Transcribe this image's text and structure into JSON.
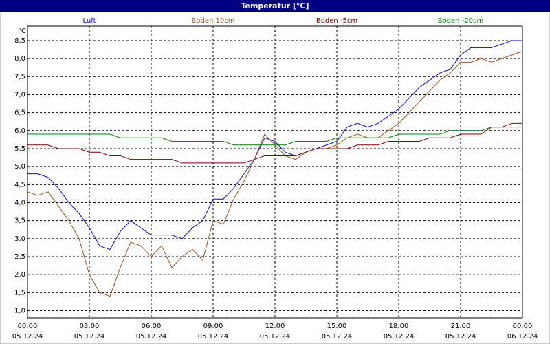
{
  "chart_data": {
    "type": "line",
    "title": "Temperatur [°C]",
    "y_label": "°C",
    "x": [
      0,
      0.5,
      1,
      1.5,
      2,
      2.5,
      3,
      3.5,
      4,
      4.5,
      5,
      5.5,
      6,
      6.5,
      7,
      7.5,
      8,
      8.5,
      9,
      9.5,
      10,
      10.5,
      11,
      11.5,
      12,
      12.5,
      13,
      13.5,
      14,
      14.5,
      15,
      15.5,
      16,
      16.5,
      17,
      17.5,
      18,
      18.5,
      19,
      19.5,
      20,
      20.5,
      21,
      21.5,
      22,
      22.5,
      23,
      23.5,
      24
    ],
    "series": [
      {
        "name": "Luft",
        "color": "#0000e0",
        "values": [
          4.8,
          4.8,
          4.7,
          4.4,
          4.0,
          3.7,
          3.3,
          2.8,
          2.7,
          3.2,
          3.5,
          3.3,
          3.1,
          3.1,
          3.1,
          3.0,
          3.3,
          3.5,
          4.1,
          4.1,
          4.4,
          4.8,
          5.2,
          5.8,
          5.7,
          5.4,
          5.3,
          5.4,
          5.5,
          5.6,
          5.7,
          6.1,
          6.2,
          6.1,
          6.2,
          6.4,
          6.6,
          6.9,
          7.2,
          7.4,
          7.6,
          7.7,
          8.1,
          8.3,
          8.3,
          8.3,
          8.4,
          8.5,
          8.5
        ]
      },
      {
        "name": "Boden 10cm",
        "color": "#a05020",
        "values": [
          4.3,
          4.2,
          4.3,
          3.9,
          3.5,
          3.0,
          2.0,
          1.5,
          1.4,
          2.2,
          2.9,
          2.8,
          2.5,
          2.8,
          2.2,
          2.5,
          2.7,
          2.4,
          3.5,
          3.4,
          4.1,
          4.6,
          5.2,
          5.9,
          5.6,
          5.3,
          5.2,
          5.4,
          5.5,
          5.5,
          5.6,
          5.8,
          5.9,
          5.8,
          5.8,
          6.0,
          6.2,
          6.5,
          6.8,
          7.1,
          7.4,
          7.6,
          7.9,
          7.9,
          8.0,
          7.9,
          8.0,
          8.1,
          8.2
        ]
      },
      {
        "name": "Boden -5cm",
        "color": "#800000",
        "values": [
          5.6,
          5.6,
          5.6,
          5.5,
          5.5,
          5.5,
          5.4,
          5.4,
          5.3,
          5.3,
          5.2,
          5.2,
          5.2,
          5.2,
          5.2,
          5.1,
          5.1,
          5.1,
          5.1,
          5.1,
          5.1,
          5.1,
          5.2,
          5.3,
          5.3,
          5.3,
          5.3,
          5.4,
          5.5,
          5.5,
          5.5,
          5.5,
          5.6,
          5.6,
          5.6,
          5.7,
          5.7,
          5.7,
          5.7,
          5.8,
          5.8,
          5.8,
          5.9,
          5.9,
          5.9,
          6.1,
          6.1,
          6.2,
          6.2
        ]
      },
      {
        "name": "Boden -20cm",
        "color": "#008000",
        "values": [
          5.9,
          5.9,
          5.9,
          5.9,
          5.9,
          5.9,
          5.9,
          5.9,
          5.9,
          5.8,
          5.8,
          5.8,
          5.8,
          5.8,
          5.7,
          5.7,
          5.7,
          5.7,
          5.7,
          5.7,
          5.6,
          5.6,
          5.6,
          5.6,
          5.6,
          5.6,
          5.7,
          5.7,
          5.7,
          5.7,
          5.8,
          5.8,
          5.8,
          5.8,
          5.8,
          5.8,
          5.9,
          5.9,
          5.9,
          5.9,
          5.9,
          6.0,
          6.0,
          6.0,
          6.0,
          6.1,
          6.1,
          6.1,
          6.1
        ]
      }
    ],
    "xlim": [
      0,
      24
    ],
    "xticks": [
      {
        "value": 0,
        "label": "00:00"
      },
      {
        "value": 3,
        "label": "03:00"
      },
      {
        "value": 6,
        "label": "06:00"
      },
      {
        "value": 9,
        "label": "09:00"
      },
      {
        "value": 12,
        "label": "12:00"
      },
      {
        "value": 15,
        "label": "15:00"
      },
      {
        "value": 18,
        "label": "18:00"
      },
      {
        "value": 21,
        "label": "21:00"
      },
      {
        "value": 24,
        "label": "00:00"
      }
    ],
    "xtick_dates": [
      "05.12.24",
      "05.12.24",
      "05.12.24",
      "05.12.24",
      "05.12.24",
      "05.12.24",
      "05.12.24",
      "05.12.24",
      "06.12.24"
    ],
    "ylim": [
      0.8,
      8.9
    ],
    "yticks": [
      {
        "value": 1.0,
        "label": "1,0"
      },
      {
        "value": 1.5,
        "label": "1,5"
      },
      {
        "value": 2.0,
        "label": "2,0"
      },
      {
        "value": 2.5,
        "label": "2,5"
      },
      {
        "value": 3.0,
        "label": "3,0"
      },
      {
        "value": 3.5,
        "label": "3,5"
      },
      {
        "value": 4.0,
        "label": "4,0"
      },
      {
        "value": 4.5,
        "label": "4,5"
      },
      {
        "value": 5.0,
        "label": "5,0"
      },
      {
        "value": 5.5,
        "label": "5,5"
      },
      {
        "value": 6.0,
        "label": "6,0"
      },
      {
        "value": 6.5,
        "label": "6,5"
      },
      {
        "value": 7.0,
        "label": "7,0"
      },
      {
        "value": 7.5,
        "label": "7,5"
      },
      {
        "value": 8.0,
        "label": "8,0"
      },
      {
        "value": 8.5,
        "label": "8,5"
      }
    ],
    "grid": true
  }
}
